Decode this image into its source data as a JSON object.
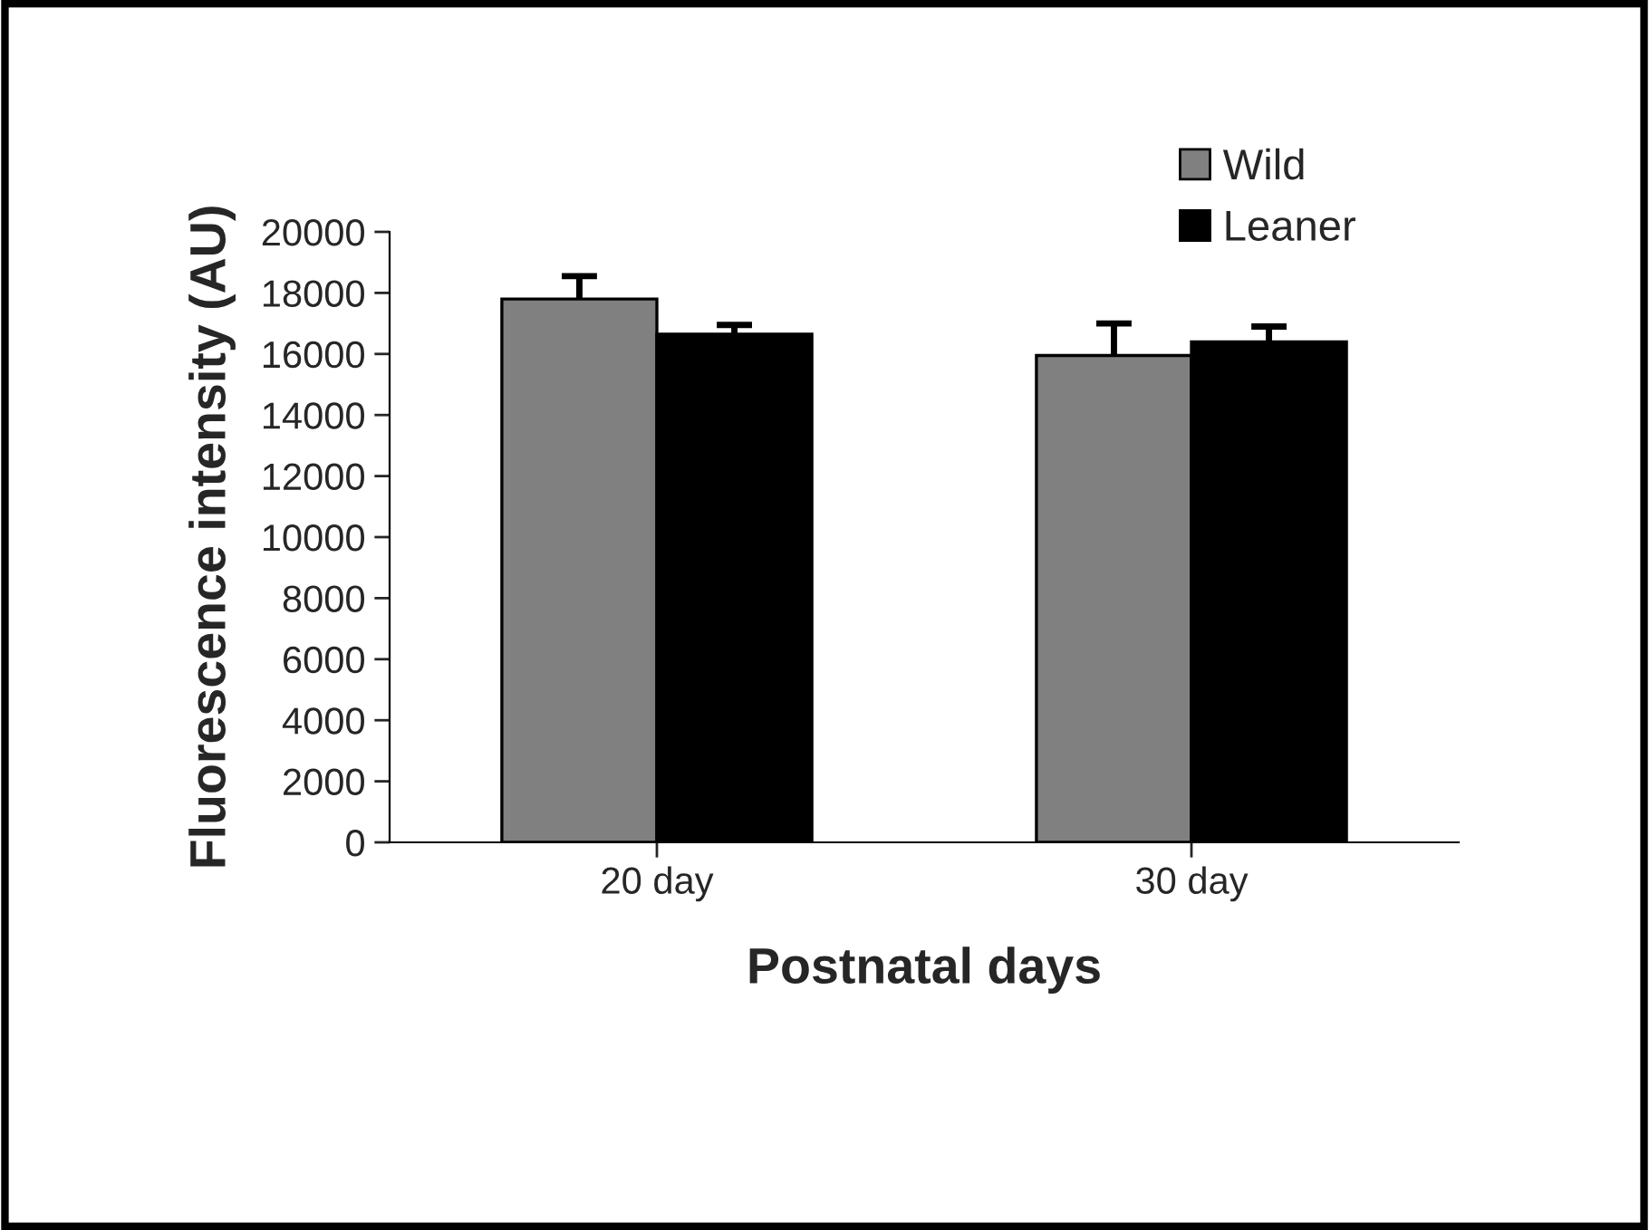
{
  "chart_data": {
    "type": "bar",
    "xlabel": "Postnatal days",
    "ylabel": "Fluorescence intensity (AU)",
    "categories": [
      "20 day",
      "30 day"
    ],
    "series": [
      {
        "name": "Wild",
        "color": "#808080",
        "values": [
          17800,
          15950
        ],
        "errors": [
          [
            17800,
            18550
          ],
          [
            15950,
            17000
          ]
        ]
      },
      {
        "name": "Leaner",
        "color": "#000000",
        "values": [
          16650,
          16400
        ],
        "errors": [
          [
            16650,
            16950
          ],
          [
            16400,
            16900
          ]
        ]
      }
    ],
    "ylim": [
      0,
      20000
    ],
    "yticks": [
      0,
      2000,
      4000,
      6000,
      8000,
      10000,
      12000,
      14000,
      16000,
      18000,
      20000
    ],
    "grid": false,
    "legend": "top right"
  }
}
